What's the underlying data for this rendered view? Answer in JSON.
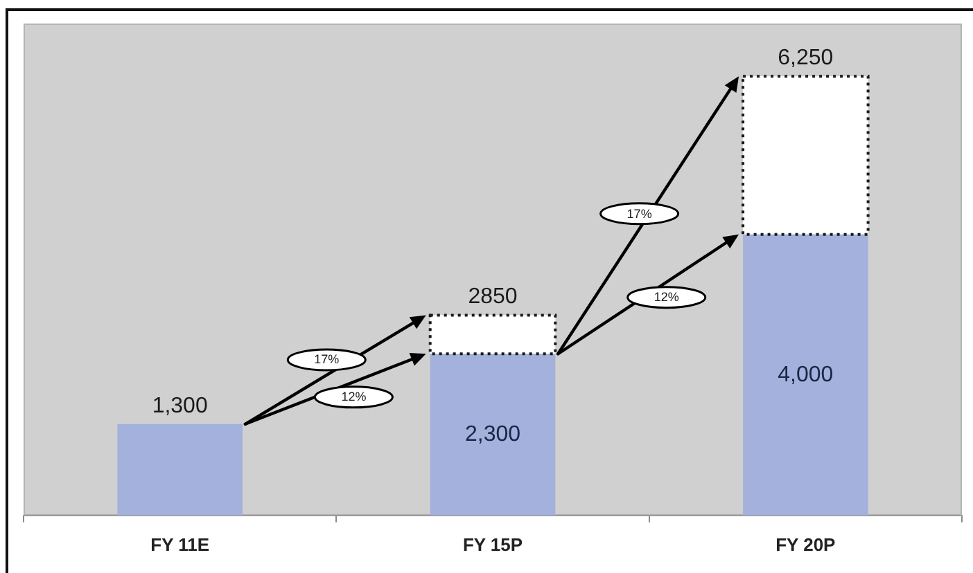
{
  "chart_data": {
    "type": "bar",
    "categories": [
      "FY 11E",
      "FY 15P",
      "FY 20P"
    ],
    "stacked": true,
    "series": [
      {
        "color": "#a3b1dc",
        "values": [
          1300,
          2300,
          4000
        ],
        "value_labels": [
          null,
          "2,300",
          "4,000"
        ]
      },
      {
        "color": "#ffffff",
        "values": [
          null,
          550,
          2250
        ],
        "line_style": "dotted"
      }
    ],
    "totals": [
      "1,300",
      "2850",
      "6,250"
    ],
    "annotations": [
      "17%",
      "12%",
      "17%",
      "12%"
    ],
    "ylim": [
      0,
      7000
    ],
    "tick_labels": "x",
    "grid": false,
    "legend": false
  }
}
